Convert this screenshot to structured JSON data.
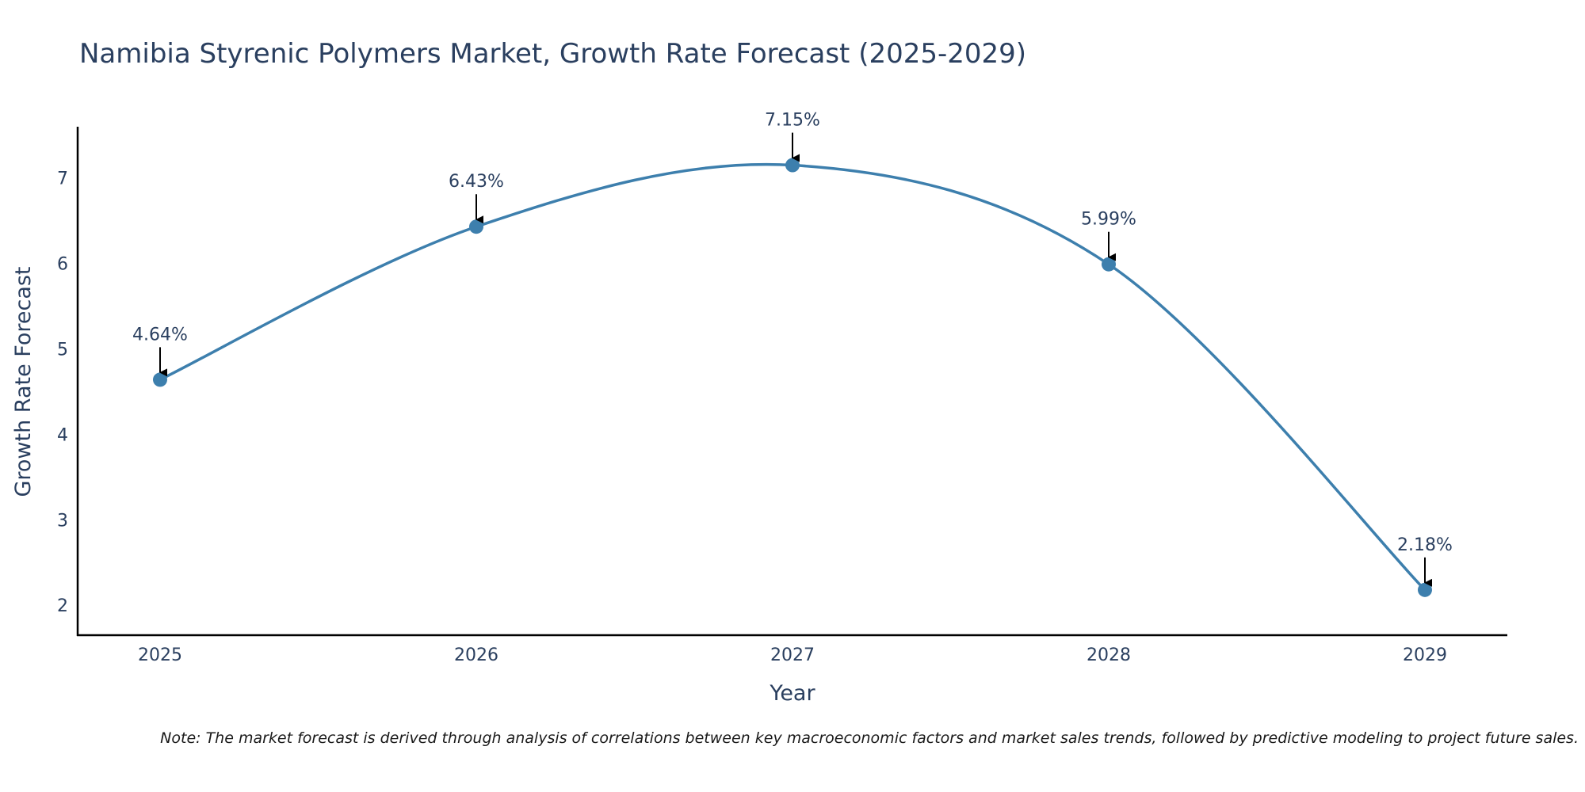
{
  "chart_data": {
    "type": "line",
    "title": "Namibia Styrenic Polymers Market, Growth Rate Forecast (2025-2029)",
    "xlabel": "Year",
    "ylabel": "Growth Rate Forecast",
    "categories": [
      "2025",
      "2026",
      "2027",
      "2028",
      "2029"
    ],
    "series": [
      {
        "name": "Growth Rate Forecast",
        "values": [
          4.64,
          6.43,
          7.15,
          5.99,
          2.18
        ]
      }
    ],
    "data_labels": [
      "4.64%",
      "6.43%",
      "7.15%",
      "5.99%",
      "2.18%"
    ],
    "yticks": [
      "2",
      "3",
      "4",
      "5",
      "6",
      "7"
    ],
    "ylim": [
      1.65,
      7.6
    ],
    "line_color": "#3d7fad",
    "marker_color": "#3d7fad",
    "grid": false,
    "legend": "none"
  },
  "note": "Note: The market forecast is derived through analysis of correlations between key macroeconomic factors and market sales trends, followed by predictive modeling to project future sales."
}
